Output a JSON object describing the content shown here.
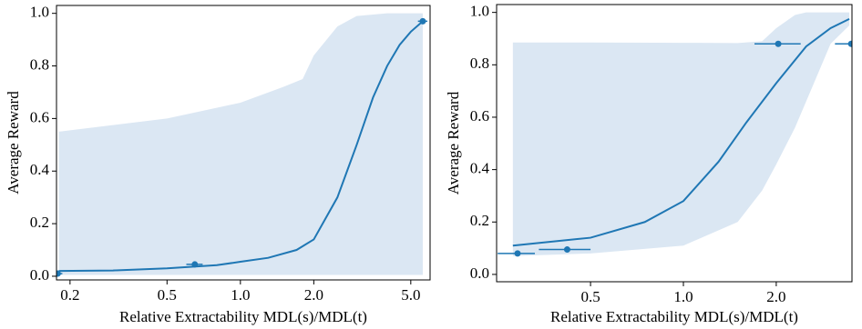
{
  "chart_data": [
    {
      "type": "line",
      "xscale": "log",
      "xlabel": "Relative Extractability MDL(s)/MDL(t)",
      "ylabel": "Average Reward",
      "xlim": [
        0.176,
        6.0
      ],
      "ylim": [
        -0.014,
        1.03
      ],
      "xticks": [
        0.2,
        0.5,
        {
          "value": 1,
          "label": "1.0"
        },
        {
          "value": 2,
          "label": "2.0"
        },
        {
          "value": 5,
          "label": "5.0"
        }
      ],
      "yticks": [
        {
          "value": 0,
          "label": "0.0"
        },
        0.2,
        0.4,
        0.6,
        0.8,
        {
          "value": 1,
          "label": "1.0"
        }
      ],
      "color": "#1f77b4",
      "band_color": "#dbe7f3",
      "curve": {
        "x": [
          0.18,
          0.3,
          0.5,
          0.8,
          1.0,
          1.3,
          1.7,
          2.0,
          2.5,
          3.0,
          3.5,
          4.0,
          4.5,
          5.0,
          5.6
        ],
        "values": [
          0.02,
          0.022,
          0.03,
          0.042,
          0.055,
          0.07,
          0.1,
          0.14,
          0.3,
          0.5,
          0.68,
          0.8,
          0.88,
          0.93,
          0.97
        ]
      },
      "band": {
        "x": [
          0.18,
          0.5,
          1.0,
          1.5,
          1.8,
          2.0,
          2.5,
          3.0,
          4.0,
          5.6
        ],
        "lower": [
          0.005,
          0.005,
          0.005,
          0.005,
          0.005,
          0.005,
          0.005,
          0.005,
          0.005,
          0.005
        ],
        "upper": [
          0.55,
          0.6,
          0.66,
          0.72,
          0.75,
          0.84,
          0.95,
          0.99,
          1.0,
          1.0
        ]
      },
      "points": {
        "x": [
          0.178,
          0.65,
          5.6
        ],
        "values": [
          0.01,
          0.045,
          0.97
        ],
        "x_low": [
          0.17,
          0.6,
          5.35
        ],
        "x_high": [
          0.186,
          0.7,
          5.85
        ]
      }
    },
    {
      "type": "line",
      "xscale": "log",
      "xlabel": "Relative Extractability MDL(s)/MDL(t)",
      "ylabel": "Average Reward",
      "xlim": [
        0.248,
        3.52
      ],
      "ylim": [
        -0.028,
        1.03
      ],
      "xticks": [
        0.5,
        {
          "value": 1,
          "label": "1.0"
        },
        {
          "value": 2,
          "label": "2.0"
        }
      ],
      "yticks": [
        {
          "value": 0,
          "label": "0.0"
        },
        0.2,
        0.4,
        0.6,
        0.8,
        {
          "value": 1,
          "label": "1.0"
        }
      ],
      "color": "#1f77b4",
      "band_color": "#dbe7f3",
      "curve": {
        "x": [
          0.28,
          0.5,
          0.75,
          1.0,
          1.3,
          1.6,
          2.0,
          2.5,
          3.0,
          3.45
        ],
        "values": [
          0.11,
          0.14,
          0.2,
          0.28,
          0.43,
          0.58,
          0.73,
          0.87,
          0.94,
          0.975
        ]
      },
      "band": {
        "x": [
          0.28,
          0.5,
          1.0,
          1.5,
          1.8,
          2.0,
          2.3,
          2.5,
          3.0,
          3.45
        ],
        "lower": [
          0.07,
          0.08,
          0.11,
          0.2,
          0.32,
          0.42,
          0.56,
          0.66,
          0.88,
          0.95
        ],
        "upper": [
          0.885,
          0.885,
          0.884,
          0.883,
          0.89,
          0.94,
          0.99,
          1.0,
          1.0,
          1.0
        ]
      },
      "points": {
        "x": [
          0.29,
          0.42,
          2.03,
          3.5
        ],
        "values": [
          0.08,
          0.095,
          0.88,
          0.88
        ],
        "x_low": [
          0.25,
          0.34,
          1.7,
          3.1
        ],
        "x_high": [
          0.33,
          0.5,
          2.4,
          3.9
        ]
      }
    }
  ]
}
